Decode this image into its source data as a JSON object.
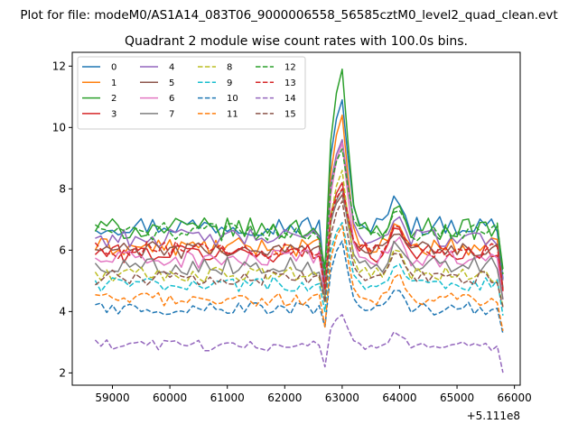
{
  "chart_data": {
    "type": "line",
    "suptitle": "Plot for file: modeM0/AS1A14_083T06_9000006558_56585cztM0_level2_quad_clean.evt",
    "title": "Quadrant 2 module wise count rates with 100.0s bins.",
    "xlabel": "",
    "ylabel": "",
    "offset_text": "+5.111e8",
    "x_offset": 511100000,
    "xlim": [
      58300,
      66100
    ],
    "ylim": [
      1.6,
      12.45
    ],
    "x_ticks": [
      59000,
      60000,
      61000,
      62000,
      63000,
      64000,
      65000,
      66000
    ],
    "x_tick_labels": [
      "59000",
      "60000",
      "61000",
      "62000",
      "63000",
      "64000",
      "65000",
      "66000"
    ],
    "y_ticks": [
      2,
      4,
      6,
      8,
      10,
      12
    ],
    "y_tick_labels": [
      "2",
      "4",
      "6",
      "8",
      "10",
      "12"
    ],
    "grid": false,
    "legend_position": "upper-left",
    "legend_columns": 4,
    "x_start": 58700,
    "x_step": 100,
    "n_points": 72,
    "series": [
      {
        "name": "0",
        "color": "#1f77b4",
        "dash": "solid",
        "base": 6.8,
        "noise": 0.32,
        "peak": 10.9,
        "dip": 4.9,
        "bump": 7.9
      },
      {
        "name": "1",
        "color": "#ff7f0e",
        "dash": "solid",
        "base": 6.1,
        "noise": 0.3,
        "peak": 10.4,
        "dip": 4.7,
        "bump": 7.0
      },
      {
        "name": "2",
        "color": "#2ca02c",
        "dash": "solid",
        "base": 6.7,
        "noise": 0.35,
        "peak": 11.9,
        "dip": 5.4,
        "bump": 7.5
      },
      {
        "name": "3",
        "color": "#d62728",
        "dash": "solid",
        "base": 5.9,
        "noise": 0.3,
        "peak": 8.2,
        "dip": 4.7,
        "bump": 7.0
      },
      {
        "name": "4",
        "color": "#9467bd",
        "dash": "solid",
        "base": 6.4,
        "noise": 0.3,
        "peak": 9.6,
        "dip": 5.0,
        "bump": 7.2
      },
      {
        "name": "5",
        "color": "#8c564b",
        "dash": "solid",
        "base": 6.0,
        "noise": 0.28,
        "peak": 7.8,
        "dip": 4.8,
        "bump": 6.8
      },
      {
        "name": "6",
        "color": "#e377c2",
        "dash": "solid",
        "base": 5.7,
        "noise": 0.3,
        "peak": 9.5,
        "dip": 4.4,
        "bump": 6.6
      },
      {
        "name": "7",
        "color": "#7f7f7f",
        "dash": "solid",
        "base": 5.5,
        "noise": 0.3,
        "peak": 8.0,
        "dip": 4.5,
        "bump": 6.4
      },
      {
        "name": "8",
        "color": "#bcbd22",
        "dash": "dashed",
        "base": 5.2,
        "noise": 0.25,
        "peak": 8.6,
        "dip": 4.3,
        "bump": 6.2
      },
      {
        "name": "9",
        "color": "#17becf",
        "dash": "dashed",
        "base": 4.9,
        "noise": 0.25,
        "peak": 6.9,
        "dip": 4.0,
        "bump": 5.6
      },
      {
        "name": "10",
        "color": "#1f77b4",
        "dash": "dashed",
        "base": 4.1,
        "noise": 0.22,
        "peak": 6.3,
        "dip": 3.5,
        "bump": 4.9
      },
      {
        "name": "11",
        "color": "#ff7f0e",
        "dash": "dashed",
        "base": 4.4,
        "noise": 0.22,
        "peak": 6.8,
        "dip": 3.5,
        "bump": 5.4
      },
      {
        "name": "12",
        "color": "#2ca02c",
        "dash": "dashed",
        "base": 6.6,
        "noise": 0.3,
        "peak": 9.3,
        "dip": 5.2,
        "bump": 7.6
      },
      {
        "name": "13",
        "color": "#d62728",
        "dash": "dashed",
        "base": 6.0,
        "noise": 0.28,
        "peak": 8.0,
        "dip": 4.7,
        "bump": 6.9
      },
      {
        "name": "14",
        "color": "#9467bd",
        "dash": "dashed",
        "base": 2.9,
        "noise": 0.18,
        "peak": 3.9,
        "dip": 2.2,
        "bump": 3.4
      },
      {
        "name": "15",
        "color": "#8c564b",
        "dash": "dashed",
        "base": 5.1,
        "noise": 0.25,
        "peak": 7.6,
        "dip": 4.3,
        "bump": 6.1
      }
    ]
  }
}
